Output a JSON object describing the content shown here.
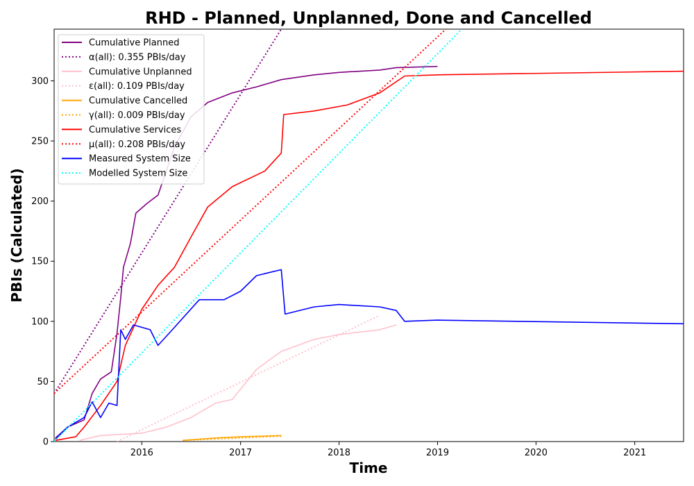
{
  "chart_data": {
    "type": "line",
    "title": "RHD - Planned, Unplanned, Done  and Cancelled",
    "xlabel": "Time",
    "ylabel": "PBIs (Calculated)",
    "xlim": [
      "2015-02-10",
      "2021-07-01"
    ],
    "ylim": [
      0,
      343
    ],
    "x_ticks": [
      "2016",
      "2017",
      "2018",
      "2019",
      "2020",
      "2021"
    ],
    "y_ticks": [
      0,
      50,
      100,
      150,
      200,
      250,
      300
    ],
    "grid": false,
    "legend_position": "upper-left",
    "series": [
      {
        "name": "Cumulative Planned",
        "color": "#800080",
        "style": "solid",
        "points": [
          [
            "2015-02-15",
            3
          ],
          [
            "2015-04-01",
            12
          ],
          [
            "2015-06-01",
            18
          ],
          [
            "2015-07-01",
            40
          ],
          [
            "2015-08-01",
            52
          ],
          [
            "2015-09-10",
            58
          ],
          [
            "2015-10-01",
            90
          ],
          [
            "2015-10-15",
            120
          ],
          [
            "2015-10-25",
            145
          ],
          [
            "2015-11-20",
            165
          ],
          [
            "2015-12-10",
            190
          ],
          [
            "2016-01-20",
            198
          ],
          [
            "2016-03-01",
            205
          ],
          [
            "2016-05-01",
            245
          ],
          [
            "2016-07-01",
            270
          ],
          [
            "2016-09-01",
            282
          ],
          [
            "2016-12-01",
            290
          ],
          [
            "2017-03-01",
            295
          ],
          [
            "2017-06-01",
            301
          ],
          [
            "2017-10-01",
            305
          ],
          [
            "2018-01-01",
            307
          ],
          [
            "2018-06-01",
            309
          ],
          [
            "2018-08-01",
            311
          ],
          [
            "2019-01-01",
            312
          ]
        ]
      },
      {
        "name": "α(all): 0.355 PBIs/day",
        "color": "#800080",
        "style": "dotted",
        "points": [
          [
            "2015-02-10",
            40
          ],
          [
            "2017-06-01",
            343
          ]
        ]
      },
      {
        "name": "Cumulative Unplanned",
        "color": "#ffc0cb",
        "style": "solid",
        "points": [
          [
            "2015-05-15",
            1
          ],
          [
            "2015-08-01",
            5
          ],
          [
            "2016-01-01",
            7
          ],
          [
            "2016-04-01",
            12
          ],
          [
            "2016-07-01",
            20
          ],
          [
            "2016-10-01",
            32
          ],
          [
            "2016-12-01",
            35
          ],
          [
            "2017-03-01",
            60
          ],
          [
            "2017-06-01",
            75
          ],
          [
            "2017-10-01",
            85
          ],
          [
            "2018-01-01",
            89
          ],
          [
            "2018-06-01",
            93
          ],
          [
            "2018-08-01",
            97
          ]
        ]
      },
      {
        "name": "ε(all): 0.109 PBIs/day",
        "color": "#ffc0cb",
        "style": "dotted",
        "points": [
          [
            "2015-10-01",
            0
          ],
          [
            "2018-06-01",
            105
          ]
        ]
      },
      {
        "name": "Cumulative Cancelled",
        "color": "#ffa500",
        "style": "solid",
        "points": [
          [
            "2016-06-01",
            1
          ],
          [
            "2016-10-01",
            3
          ],
          [
            "2017-01-01",
            4
          ],
          [
            "2017-06-01",
            5
          ]
        ]
      },
      {
        "name": "γ(all): 0.009 PBIs/day",
        "color": "#ffa500",
        "style": "dotted",
        "points": [
          [
            "2016-06-01",
            1
          ],
          [
            "2017-06-01",
            4.5
          ]
        ]
      },
      {
        "name": "Cumulative Services",
        "color": "#ff0000",
        "style": "solid",
        "points": [
          [
            "2015-02-15",
            1
          ],
          [
            "2015-05-01",
            4
          ],
          [
            "2015-06-01",
            12
          ],
          [
            "2015-08-01",
            30
          ],
          [
            "2015-10-01",
            50
          ],
          [
            "2015-11-01",
            80
          ],
          [
            "2016-01-01",
            110
          ],
          [
            "2016-03-01",
            130
          ],
          [
            "2016-05-01",
            145
          ],
          [
            "2016-07-01",
            170
          ],
          [
            "2016-09-01",
            195
          ],
          [
            "2016-12-01",
            212
          ],
          [
            "2017-04-01",
            225
          ],
          [
            "2017-06-01",
            240
          ],
          [
            "2017-06-10",
            272
          ],
          [
            "2017-10-01",
            275
          ],
          [
            "2018-02-01",
            280
          ],
          [
            "2018-06-01",
            290
          ],
          [
            "2018-09-01",
            304
          ],
          [
            "2019-01-01",
            305
          ],
          [
            "2021-07-01",
            308
          ]
        ]
      },
      {
        "name": "μ(all): 0.208 PBIs/day",
        "color": "#ff0000",
        "style": "dotted",
        "points": [
          [
            "2015-02-10",
            40
          ],
          [
            "2019-02-01",
            343
          ]
        ]
      },
      {
        "name": "Measured System Size",
        "color": "#0000ff",
        "style": "solid",
        "points": [
          [
            "2015-02-15",
            2
          ],
          [
            "2015-04-01",
            12
          ],
          [
            "2015-06-01",
            20
          ],
          [
            "2015-07-01",
            33
          ],
          [
            "2015-08-01",
            20
          ],
          [
            "2015-09-01",
            32
          ],
          [
            "2015-10-01",
            30
          ],
          [
            "2015-10-15",
            93
          ],
          [
            "2015-11-01",
            85
          ],
          [
            "2015-12-01",
            97
          ],
          [
            "2016-02-01",
            93
          ],
          [
            "2016-03-01",
            80
          ],
          [
            "2016-05-01",
            95
          ],
          [
            "2016-08-01",
            118
          ],
          [
            "2016-11-01",
            118
          ],
          [
            "2017-01-01",
            125
          ],
          [
            "2017-03-01",
            138
          ],
          [
            "2017-06-01",
            143
          ],
          [
            "2017-06-15",
            106
          ],
          [
            "2017-10-01",
            112
          ],
          [
            "2018-01-01",
            114
          ],
          [
            "2018-06-01",
            112
          ],
          [
            "2018-08-01",
            109
          ],
          [
            "2018-09-01",
            100
          ],
          [
            "2019-01-01",
            101
          ],
          [
            "2021-07-01",
            98
          ]
        ]
      },
      {
        "name": "Modelled System Size",
        "color": "#00ffff",
        "style": "dotted",
        "points": [
          [
            "2015-02-10",
            0
          ],
          [
            "2019-04-01",
            343
          ]
        ]
      }
    ]
  }
}
